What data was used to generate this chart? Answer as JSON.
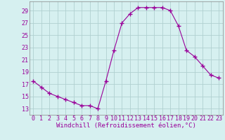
{
  "x": [
    0,
    1,
    2,
    3,
    4,
    5,
    6,
    7,
    8,
    9,
    10,
    11,
    12,
    13,
    14,
    15,
    16,
    17,
    18,
    19,
    20,
    21,
    22,
    23
  ],
  "y": [
    17.5,
    16.5,
    15.5,
    15.0,
    14.5,
    14.0,
    13.5,
    13.5,
    13.0,
    17.5,
    22.5,
    27.0,
    28.5,
    29.5,
    29.5,
    29.5,
    29.5,
    29.0,
    26.5,
    22.5,
    21.5,
    20.0,
    18.5,
    18.0
  ],
  "line_color": "#990099",
  "marker": "+",
  "marker_size": 4,
  "bg_color": "#d6f0f0",
  "grid_color": "#b0d0d0",
  "ylabel_ticks": [
    13,
    15,
    17,
    19,
    21,
    23,
    25,
    27,
    29
  ],
  "xlabel": "Windchill (Refroidissement éolien,°C)",
  "xlabel_fontsize": 6.5,
  "tick_fontsize": 6,
  "ylim": [
    12.0,
    30.5
  ],
  "xlim": [
    -0.5,
    23.5
  ]
}
